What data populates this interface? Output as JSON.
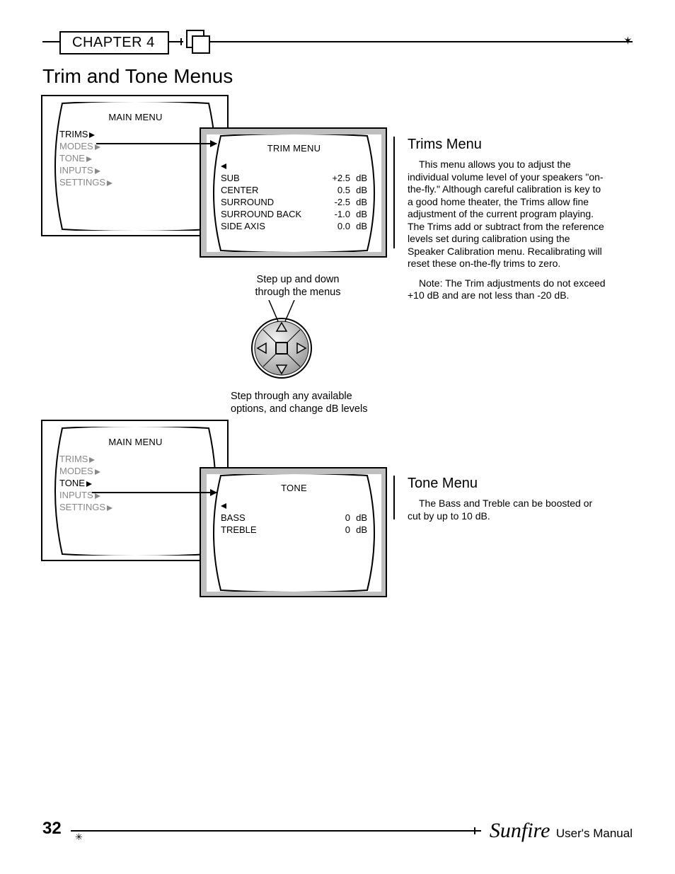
{
  "header": {
    "chapter": "CHAPTER 4"
  },
  "page_title": "Trim and Tone Menus",
  "main_menu_1": {
    "title": "MAIN MENU",
    "items": [
      {
        "label": "TRIMS",
        "active": true
      },
      {
        "label": "MODES",
        "active": false
      },
      {
        "label": "TONE",
        "active": false
      },
      {
        "label": "INPUTS",
        "active": false
      },
      {
        "label": "SETTINGS",
        "active": false
      }
    ]
  },
  "trim_menu": {
    "title": "TRIM MENU",
    "rows": [
      {
        "label": "SUB",
        "value": "+2.5",
        "unit": "dB"
      },
      {
        "label": "CENTER",
        "value": "0.5",
        "unit": "dB"
      },
      {
        "label": "SURROUND",
        "value": "-2.5",
        "unit": "dB"
      },
      {
        "label": "SURROUND BACK",
        "value": "-1.0",
        "unit": "dB"
      },
      {
        "label": "SIDE AXIS",
        "value": "0.0",
        "unit": "dB"
      }
    ]
  },
  "dpad": {
    "caption_top": "Step up and down\nthrough the menus",
    "caption_bottom": "Step through any available\noptions, and change dB levels"
  },
  "main_menu_2": {
    "title": "MAIN MENU",
    "items": [
      {
        "label": "TRIMS",
        "active": false
      },
      {
        "label": "MODES",
        "active": false
      },
      {
        "label": "TONE",
        "active": true
      },
      {
        "label": "INPUTS",
        "active": false
      },
      {
        "label": "SETTINGS",
        "active": false
      }
    ]
  },
  "tone_menu": {
    "title": "TONE",
    "rows": [
      {
        "label": "BASS",
        "value": "0",
        "unit": "dB"
      },
      {
        "label": "TREBLE",
        "value": "0",
        "unit": "dB"
      }
    ]
  },
  "trims_section": {
    "heading": "Trims Menu",
    "p1": "This menu allows you to adjust the individual volume level of your speakers \"on-the-fly.\" Although careful calibration is key to a good home theater, the Trims allow fine adjustment of the current program playing. The Trims add or subtract from the reference levels set during calibration using the Speaker Calibration menu. Recalibrating will reset these on-the-fly trims to zero.",
    "p2": "Note: The Trim adjustments do not exceed +10 dB and are not less than -20 dB."
  },
  "tone_section": {
    "heading": "Tone Menu",
    "p1": "The Bass and Treble can be boosted or cut by up to 10 dB."
  },
  "footer": {
    "page_num": "32",
    "brand": "Sunfire",
    "manual": "User's Manual"
  },
  "colors": {
    "gray_panel": "#bfbfbf",
    "dim_text": "#888888"
  }
}
